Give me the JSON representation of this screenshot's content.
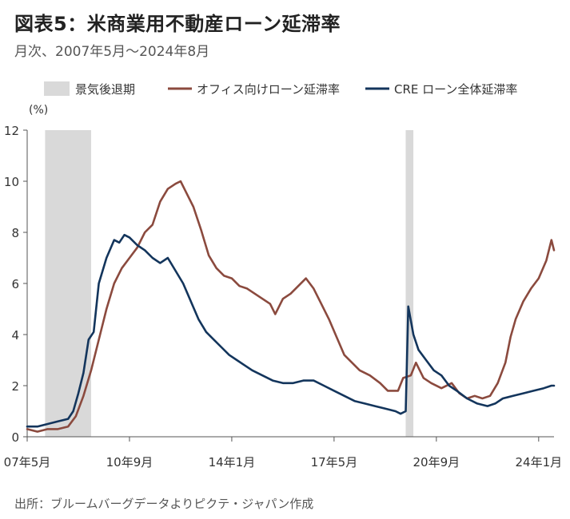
{
  "title": "図表5：米商業用不動産ローン延滞率",
  "subtitle": "月次、2007年5月～2024年8月",
  "source": "出所：ブルームバーグデータよりピクテ・ジャパン作成",
  "colors": {
    "office": "#8B4A3E",
    "cre": "#13355C",
    "recession": "#D9D9D9"
  },
  "chart_data": {
    "type": "line",
    "ylabel": "(%)",
    "ylim": [
      0,
      12
    ],
    "yticks": [
      "0",
      "2",
      "4",
      "6",
      "8",
      "10",
      "12"
    ],
    "x_tick_labels": [
      {
        "label": "07年5月",
        "t": 0
      },
      {
        "label": "10年9月",
        "t": 40
      },
      {
        "label": "14年1月",
        "t": 80
      },
      {
        "label": "17年5月",
        "t": 120
      },
      {
        "label": "20年9月",
        "t": 160
      },
      {
        "label": "24年1月",
        "t": 200
      }
    ],
    "legend": [
      "景気後退期",
      "オフィス向けローン延滞率",
      "CRE ローン全体延滞率"
    ],
    "recessions": [
      [
        7,
        25
      ],
      [
        148,
        151
      ]
    ],
    "series": [
      {
        "name": "オフィス向けローン延滞率",
        "color": "#8B4A3E",
        "points": [
          [
            0,
            0.3
          ],
          [
            4,
            0.2
          ],
          [
            8,
            0.3
          ],
          [
            12,
            0.3
          ],
          [
            16,
            0.4
          ],
          [
            19,
            0.8
          ],
          [
            22,
            1.6
          ],
          [
            25,
            2.6
          ],
          [
            28,
            3.8
          ],
          [
            31,
            5.0
          ],
          [
            34,
            6.0
          ],
          [
            37,
            6.6
          ],
          [
            40,
            7.0
          ],
          [
            43,
            7.4
          ],
          [
            46,
            8.0
          ],
          [
            49,
            8.3
          ],
          [
            52,
            9.2
          ],
          [
            55,
            9.7
          ],
          [
            58,
            9.9
          ],
          [
            60,
            10.0
          ],
          [
            62,
            9.6
          ],
          [
            65,
            9.0
          ],
          [
            68,
            8.1
          ],
          [
            71,
            7.1
          ],
          [
            74,
            6.6
          ],
          [
            77,
            6.3
          ],
          [
            80,
            6.2
          ],
          [
            83,
            5.9
          ],
          [
            86,
            5.8
          ],
          [
            89,
            5.6
          ],
          [
            92,
            5.4
          ],
          [
            95,
            5.2
          ],
          [
            97,
            4.8
          ],
          [
            100,
            5.4
          ],
          [
            103,
            5.6
          ],
          [
            106,
            5.9
          ],
          [
            109,
            6.2
          ],
          [
            112,
            5.8
          ],
          [
            115,
            5.2
          ],
          [
            118,
            4.6
          ],
          [
            121,
            3.9
          ],
          [
            124,
            3.2
          ],
          [
            127,
            2.9
          ],
          [
            130,
            2.6
          ],
          [
            134,
            2.4
          ],
          [
            138,
            2.1
          ],
          [
            141,
            1.8
          ],
          [
            145,
            1.8
          ],
          [
            147,
            2.3
          ],
          [
            150,
            2.4
          ],
          [
            152,
            2.9
          ],
          [
            155,
            2.3
          ],
          [
            158,
            2.1
          ],
          [
            162,
            1.9
          ],
          [
            166,
            2.1
          ],
          [
            169,
            1.7
          ],
          [
            172,
            1.5
          ],
          [
            175,
            1.6
          ],
          [
            178,
            1.5
          ],
          [
            181,
            1.6
          ],
          [
            184,
            2.1
          ],
          [
            187,
            2.9
          ],
          [
            189,
            3.9
          ],
          [
            191,
            4.6
          ],
          [
            194,
            5.3
          ],
          [
            197,
            5.8
          ],
          [
            200,
            6.2
          ],
          [
            203,
            6.9
          ],
          [
            205,
            7.7
          ],
          [
            206,
            7.3
          ]
        ]
      },
      {
        "name": "CRE ローン全体延滞率",
        "color": "#13355C",
        "points": [
          [
            0,
            0.4
          ],
          [
            4,
            0.4
          ],
          [
            8,
            0.5
          ],
          [
            12,
            0.6
          ],
          [
            16,
            0.7
          ],
          [
            18,
            1.0
          ],
          [
            20,
            1.7
          ],
          [
            22,
            2.5
          ],
          [
            24,
            3.8
          ],
          [
            26,
            4.1
          ],
          [
            28,
            6.0
          ],
          [
            31,
            7.0
          ],
          [
            34,
            7.7
          ],
          [
            36,
            7.6
          ],
          [
            38,
            7.9
          ],
          [
            40,
            7.8
          ],
          [
            43,
            7.5
          ],
          [
            46,
            7.3
          ],
          [
            49,
            7.0
          ],
          [
            52,
            6.8
          ],
          [
            55,
            7.0
          ],
          [
            58,
            6.5
          ],
          [
            61,
            6.0
          ],
          [
            64,
            5.3
          ],
          [
            67,
            4.6
          ],
          [
            70,
            4.1
          ],
          [
            73,
            3.8
          ],
          [
            76,
            3.5
          ],
          [
            79,
            3.2
          ],
          [
            82,
            3.0
          ],
          [
            85,
            2.8
          ],
          [
            88,
            2.6
          ],
          [
            92,
            2.4
          ],
          [
            96,
            2.2
          ],
          [
            100,
            2.1
          ],
          [
            104,
            2.1
          ],
          [
            108,
            2.2
          ],
          [
            112,
            2.2
          ],
          [
            116,
            2.0
          ],
          [
            120,
            1.8
          ],
          [
            124,
            1.6
          ],
          [
            128,
            1.4
          ],
          [
            132,
            1.3
          ],
          [
            136,
            1.2
          ],
          [
            140,
            1.1
          ],
          [
            144,
            1.0
          ],
          [
            146,
            0.9
          ],
          [
            148,
            1.0
          ],
          [
            149,
            5.1
          ],
          [
            151,
            4.0
          ],
          [
            153,
            3.4
          ],
          [
            156,
            3.0
          ],
          [
            159,
            2.6
          ],
          [
            162,
            2.4
          ],
          [
            165,
            2.0
          ],
          [
            168,
            1.8
          ],
          [
            172,
            1.5
          ],
          [
            176,
            1.3
          ],
          [
            180,
            1.2
          ],
          [
            183,
            1.3
          ],
          [
            186,
            1.5
          ],
          [
            190,
            1.6
          ],
          [
            194,
            1.7
          ],
          [
            198,
            1.8
          ],
          [
            202,
            1.9
          ],
          [
            205,
            2.0
          ],
          [
            206,
            2.0
          ]
        ]
      }
    ]
  }
}
